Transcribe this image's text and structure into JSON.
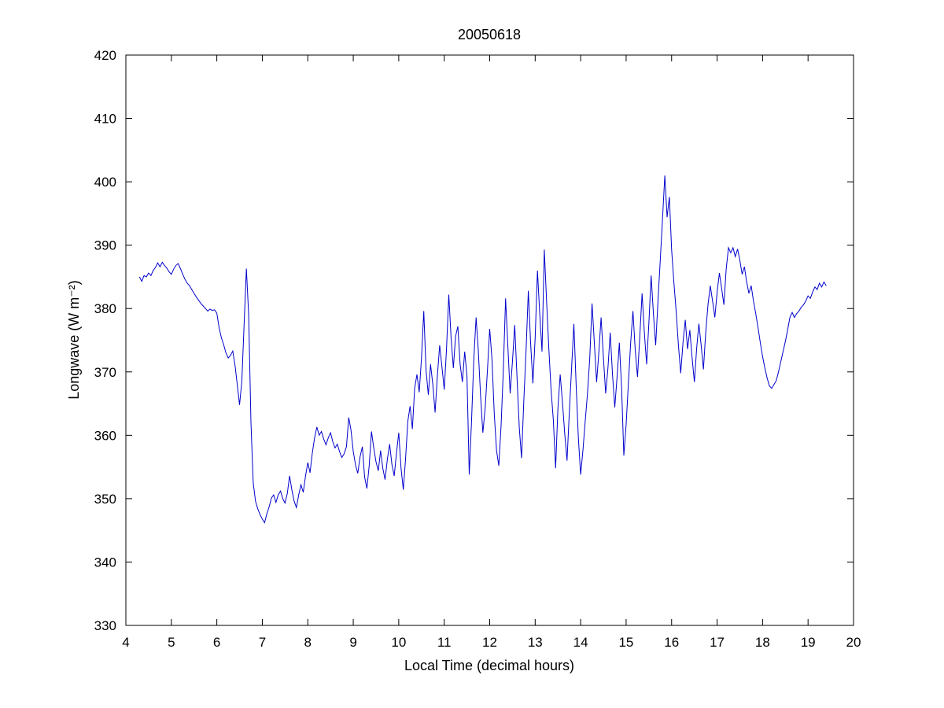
{
  "chart_data": {
    "type": "line",
    "title": "20050618",
    "xlabel": "Local Time (decimal hours)",
    "ylabel": "Longwave (W m⁻²)",
    "xlim": [
      4,
      20
    ],
    "ylim": [
      330,
      420
    ],
    "xticks": [
      4,
      5,
      6,
      7,
      8,
      9,
      10,
      11,
      12,
      13,
      14,
      15,
      16,
      17,
      18,
      19,
      20
    ],
    "yticks": [
      330,
      340,
      350,
      360,
      370,
      380,
      390,
      400,
      410,
      420
    ],
    "grid": false,
    "legend": null,
    "line_color": "#0000cc",
    "axis_color": "#000000",
    "background_color": "#ffffff",
    "series": [
      {
        "name": "longwave",
        "x_start": 4.3,
        "x_step": 0.05,
        "values": [
          385.0,
          384.3,
          385.2,
          385.0,
          385.6,
          385.2,
          386.0,
          386.5,
          387.2,
          386.6,
          387.3,
          386.8,
          386.4,
          385.8,
          385.4,
          386.2,
          386.8,
          387.1,
          386.3,
          385.4,
          384.6,
          384.0,
          383.6,
          383.0,
          382.4,
          381.8,
          381.3,
          380.8,
          380.4,
          380.0,
          379.6,
          379.9,
          379.7,
          379.8,
          379.3,
          377.0,
          375.4,
          374.3,
          373.0,
          372.2,
          372.6,
          373.3,
          371.0,
          368.0,
          364.8,
          368.5,
          377.5,
          386.3,
          379.0,
          362.0,
          352.5,
          349.6,
          348.4,
          347.5,
          346.8,
          346.2,
          347.6,
          348.7,
          350.1,
          350.6,
          349.4,
          350.6,
          351.2,
          350.0,
          349.3,
          350.8,
          353.6,
          351.4,
          349.6,
          348.6,
          350.6,
          352.2,
          351.0,
          353.6,
          355.7,
          354.1,
          357.2,
          359.6,
          361.3,
          360.0,
          360.6,
          359.4,
          358.5,
          359.6,
          360.4,
          359.0,
          358.0,
          358.6,
          357.4,
          356.5,
          357.1,
          358.2,
          362.8,
          360.8,
          357.4,
          355.3,
          354.0,
          356.6,
          358.2,
          353.4,
          351.6,
          355.2,
          360.6,
          358.0,
          355.8,
          354.4,
          357.6,
          354.8,
          353.0,
          356.2,
          358.6,
          355.4,
          353.6,
          357.2,
          360.4,
          354.8,
          351.4,
          356.2,
          362.2,
          364.6,
          361.0,
          367.4,
          369.6,
          366.8,
          372.2,
          379.6,
          370.2,
          366.4,
          371.2,
          368.0,
          363.6,
          369.4,
          374.2,
          370.8,
          367.2,
          373.6,
          382.2,
          375.4,
          370.6,
          375.6,
          377.2,
          371.2,
          368.4,
          373.2,
          369.4,
          353.8,
          362.2,
          372.0,
          378.6,
          373.4,
          366.2,
          360.4,
          364.2,
          370.2,
          376.8,
          372.0,
          363.4,
          357.6,
          355.2,
          361.6,
          370.2,
          381.6,
          374.0,
          366.6,
          371.6,
          377.4,
          369.2,
          361.2,
          356.4,
          365.6,
          373.6,
          382.8,
          374.6,
          368.2,
          375.4,
          386.0,
          379.2,
          373.2,
          389.3,
          381.2,
          373.6,
          367.2,
          362.4,
          354.8,
          364.2,
          369.6,
          365.2,
          360.2,
          356.0,
          363.6,
          370.6,
          377.6,
          368.2,
          359.6,
          353.8,
          357.6,
          362.2,
          366.6,
          372.2,
          380.8,
          374.6,
          368.4,
          373.2,
          378.6,
          372.4,
          366.6,
          370.6,
          376.2,
          369.6,
          364.4,
          369.2,
          374.6,
          367.4,
          356.8,
          361.6,
          368.2,
          374.6,
          379.6,
          373.4,
          369.2,
          375.6,
          382.4,
          376.2,
          371.2,
          377.6,
          385.2,
          379.2,
          374.2,
          381.2,
          387.6,
          394.2,
          401.0,
          394.4,
          397.6,
          389.2,
          384.2,
          379.6,
          374.2,
          369.8,
          374.6,
          378.2,
          373.6,
          376.6,
          372.2,
          368.4,
          373.6,
          377.6,
          374.2,
          370.4,
          376.2,
          380.6,
          383.6,
          381.2,
          378.6,
          382.6,
          385.6,
          383.2,
          380.6,
          386.2,
          389.6,
          388.8,
          389.6,
          388.2,
          389.4,
          387.6,
          385.4,
          386.6,
          384.2,
          382.4,
          383.6,
          381.2,
          379.2,
          377.0,
          374.6,
          372.4,
          370.6,
          369.0,
          367.8,
          367.4,
          368.0,
          368.6,
          370.0,
          371.6,
          373.2,
          374.8,
          376.6,
          378.6,
          379.4,
          378.6,
          379.2,
          379.6,
          380.2,
          380.6,
          381.2,
          382.0,
          381.6,
          382.6,
          383.4,
          383.0,
          384.0,
          383.4,
          384.2,
          383.6
        ]
      }
    ]
  }
}
